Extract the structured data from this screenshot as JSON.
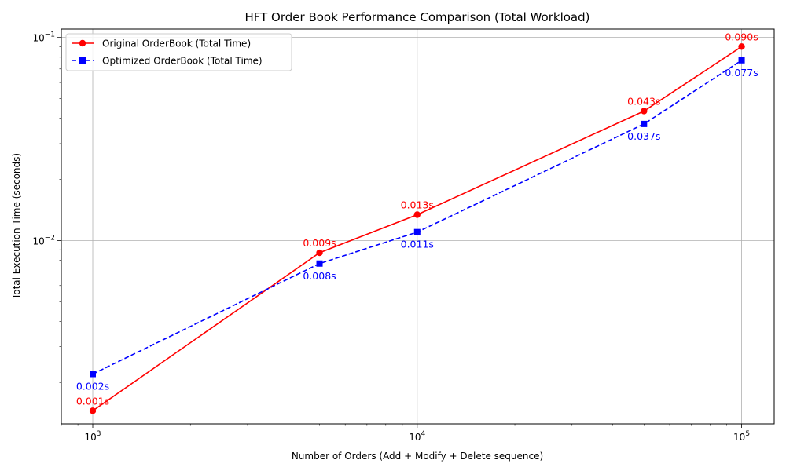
{
  "chart_data": {
    "type": "line",
    "title": "HFT Order Book Performance Comparison (Total Workload)",
    "xlabel": "Number of Orders (Add + Modify + Delete sequence)",
    "ylabel": "Total Execution Time (seconds)",
    "x_scale": "log",
    "y_scale": "log",
    "xlim": [
      800,
      126000
    ],
    "ylim": [
      0.00125,
      0.11
    ],
    "grid": true,
    "legend_position": "top-left",
    "x": [
      1000,
      5000,
      10000,
      50000,
      100000
    ],
    "x_ticks": [
      {
        "value": 1000,
        "base": "10",
        "exp": "3"
      },
      {
        "value": 10000,
        "base": "10",
        "exp": "4"
      },
      {
        "value": 100000,
        "base": "10",
        "exp": "5"
      }
    ],
    "y_ticks": [
      {
        "value": 0.01,
        "base": "10",
        "exp": "−2"
      },
      {
        "value": 0.1,
        "base": "10",
        "exp": "−1"
      }
    ],
    "series": [
      {
        "name": "Original OrderBook (Total Time)",
        "color": "#ff0000",
        "line_style": "solid",
        "marker": "circle",
        "values": [
          0.00145,
          0.0087,
          0.0134,
          0.0434,
          0.0902
        ],
        "labels": [
          "0.001s",
          "0.009s",
          "0.013s",
          "0.043s",
          "0.090s"
        ],
        "label_position": "above"
      },
      {
        "name": "Optimized OrderBook (Total Time)",
        "color": "#0000ff",
        "line_style": "dashed",
        "marker": "square",
        "values": [
          0.0022,
          0.0077,
          0.011,
          0.0375,
          0.0772
        ],
        "labels": [
          "0.002s",
          "0.008s",
          "0.011s",
          "0.037s",
          "0.077s"
        ],
        "label_position": "below"
      }
    ]
  }
}
